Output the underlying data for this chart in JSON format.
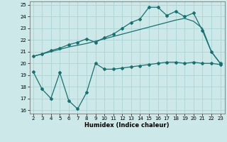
{
  "xlabel": "Humidex (Indice chaleur)",
  "x_values": [
    2,
    3,
    4,
    5,
    6,
    7,
    8,
    9,
    10,
    11,
    12,
    13,
    14,
    15,
    16,
    17,
    18,
    19,
    20,
    21,
    22,
    23
  ],
  "line1_y": [
    20.6,
    20.8,
    21.1,
    21.3,
    21.6,
    21.8,
    22.1,
    21.8,
    22.2,
    22.5,
    23.0,
    23.5,
    23.8,
    24.8,
    24.8,
    24.1,
    24.45,
    24.0,
    24.3,
    22.8,
    21.0,
    20.0
  ],
  "line2_y": [
    20.6,
    20.8,
    21.0,
    21.2,
    21.4,
    21.55,
    21.7,
    21.9,
    22.1,
    22.3,
    22.5,
    22.7,
    22.9,
    23.1,
    23.3,
    23.5,
    23.7,
    23.85,
    23.6,
    23.0,
    21.0,
    20.0
  ],
  "line3_y": [
    19.3,
    17.8,
    17.0,
    19.2,
    16.8,
    16.1,
    17.5,
    20.0,
    19.5,
    19.5,
    19.6,
    19.7,
    19.8,
    19.9,
    20.0,
    20.1,
    20.1,
    20.0,
    20.1,
    20.0,
    20.0,
    19.9
  ],
  "line_color": "#1a7070",
  "bg_color": "#cce8e8",
  "grid_color": "#aad4d4",
  "ylim": [
    15.7,
    25.3
  ],
  "xlim": [
    1.6,
    23.5
  ],
  "yticks": [
    16,
    17,
    18,
    19,
    20,
    21,
    22,
    23,
    24,
    25
  ],
  "xticks": [
    2,
    3,
    4,
    5,
    6,
    7,
    8,
    9,
    10,
    11,
    12,
    13,
    14,
    15,
    16,
    17,
    18,
    19,
    20,
    21,
    22,
    23
  ]
}
